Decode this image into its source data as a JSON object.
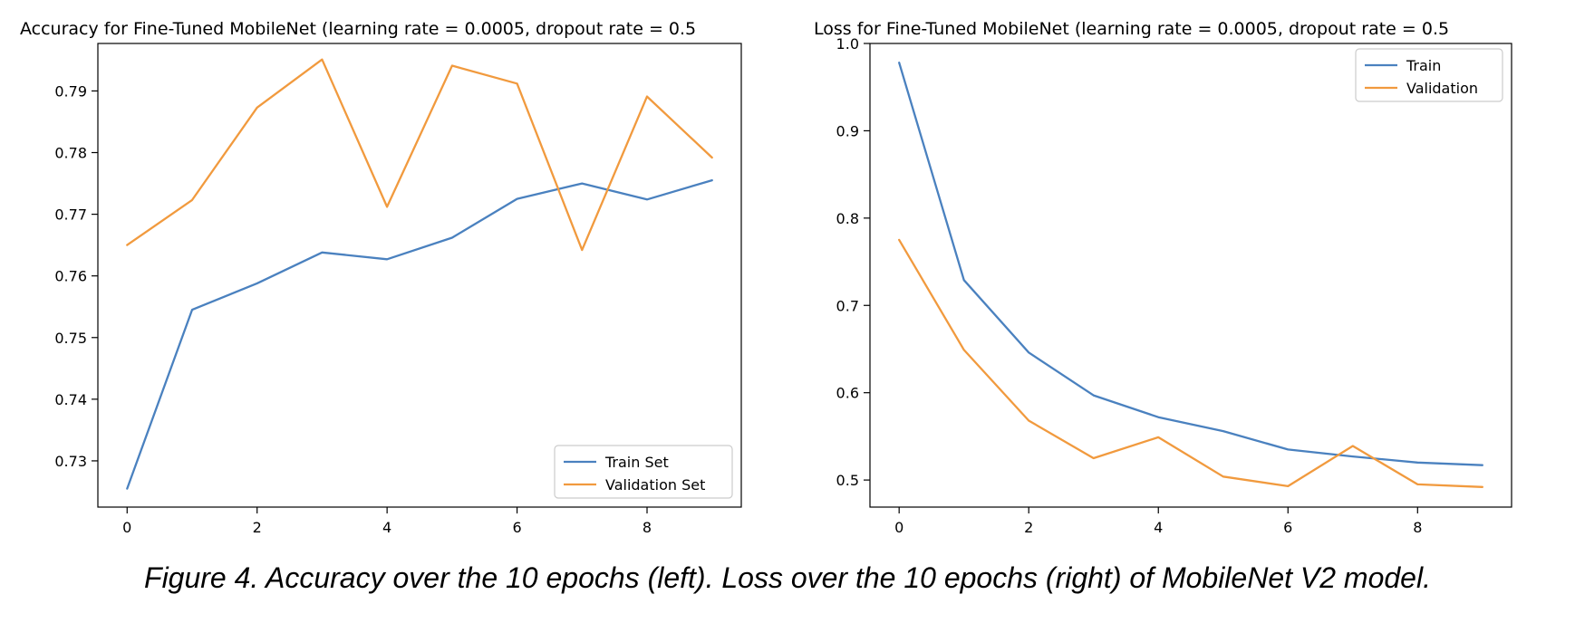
{
  "figure_caption": "Figure 4. Accuracy over the 10 epochs (left). Loss over the 10 epochs (right) of MobileNet V2 model.",
  "colors": {
    "train": "#4a81bf",
    "validation": "#f19a3e"
  },
  "chart_data": [
    {
      "type": "line",
      "title": "Accuracy for Fine-Tuned MobileNet (learning rate = 0.0005, dropout rate = 0.5",
      "xlabel": "",
      "ylabel": "",
      "x": [
        0,
        1,
        2,
        3,
        4,
        5,
        6,
        7,
        8,
        9
      ],
      "xticks": [
        0,
        2,
        4,
        6,
        8
      ],
      "yticks": [
        0.73,
        0.74,
        0.75,
        0.76,
        0.77,
        0.78,
        0.79
      ],
      "xlim": [
        -0.45,
        9.45
      ],
      "ylim": [
        0.7225,
        0.7977
      ],
      "grid": false,
      "legend_position": "lower right",
      "series": [
        {
          "name": "Train Set",
          "color": "#4a81bf",
          "values": [
            0.7255,
            0.7545,
            0.7588,
            0.7638,
            0.7627,
            0.7662,
            0.7725,
            0.775,
            0.7724,
            0.7755
          ]
        },
        {
          "name": "Validation Set",
          "color": "#f19a3e",
          "values": [
            0.765,
            0.7723,
            0.7873,
            0.7951,
            0.7712,
            0.7941,
            0.7912,
            0.7642,
            0.7891,
            0.7792
          ]
        }
      ]
    },
    {
      "type": "line",
      "title": "Loss for Fine-Tuned MobileNet (learning rate = 0.0005, dropout rate = 0.5",
      "xlabel": "",
      "ylabel": "",
      "x": [
        0,
        1,
        2,
        3,
        4,
        5,
        6,
        7,
        8,
        9
      ],
      "xticks": [
        0,
        2,
        4,
        6,
        8
      ],
      "yticks": [
        0.5,
        0.6,
        0.7,
        0.8,
        0.9,
        1.0
      ],
      "xlim": [
        -0.45,
        9.45
      ],
      "ylim": [
        0.469,
        1.0
      ],
      "grid": false,
      "legend_position": "upper right",
      "series": [
        {
          "name": "Train",
          "color": "#4a81bf",
          "values": [
            0.978,
            0.729,
            0.646,
            0.597,
            0.572,
            0.556,
            0.535,
            0.527,
            0.52,
            0.517
          ]
        },
        {
          "name": "Validation",
          "color": "#f19a3e",
          "values": [
            0.775,
            0.649,
            0.568,
            0.525,
            0.549,
            0.504,
            0.493,
            0.539,
            0.495,
            0.492
          ]
        }
      ]
    }
  ]
}
